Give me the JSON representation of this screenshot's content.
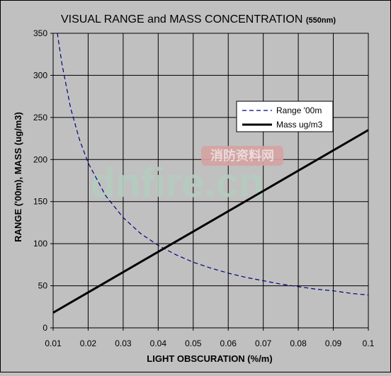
{
  "chart_data": {
    "type": "line",
    "title": "VISUAL RANGE and MASS CONCENTRATION",
    "title_suffix": "(550nm)",
    "xlabel": "LIGHT OBSCURATION (%/m)",
    "ylabel": "RANGE ('00m), MASS (ug/m3)",
    "xlim": [
      0.01,
      0.1
    ],
    "ylim": [
      0,
      350
    ],
    "x_ticks": [
      "0.01",
      "0.02",
      "0.03",
      "0.04",
      "0.05",
      "0.06",
      "0.07",
      "0.08",
      "0.09",
      "0.1"
    ],
    "y_ticks": [
      "0",
      "50",
      "100",
      "150",
      "200",
      "250",
      "300",
      "350"
    ],
    "grid": true,
    "legend_position": "right",
    "series": [
      {
        "name": "Range '00m",
        "color": "#000080",
        "dash": "dashed",
        "x": [
          0.01,
          0.011,
          0.0125,
          0.015,
          0.0175,
          0.02,
          0.025,
          0.03,
          0.035,
          0.04,
          0.045,
          0.05,
          0.055,
          0.06,
          0.065,
          0.07,
          0.075,
          0.08,
          0.085,
          0.09,
          0.095,
          0.1
        ],
        "values": [
          392,
          356,
          314,
          261,
          224,
          196,
          157,
          131,
          112,
          98,
          87,
          78,
          71,
          65,
          60,
          56,
          52,
          49,
          46,
          44,
          41,
          39
        ]
      },
      {
        "name": "Mass ug/m3",
        "color": "#000000",
        "dash": "solid",
        "x": [
          0.01,
          0.1
        ],
        "values": [
          18,
          235
        ]
      }
    ]
  },
  "watermark": {
    "text": "dnfire.cn",
    "badge_text": "消防资料网"
  }
}
